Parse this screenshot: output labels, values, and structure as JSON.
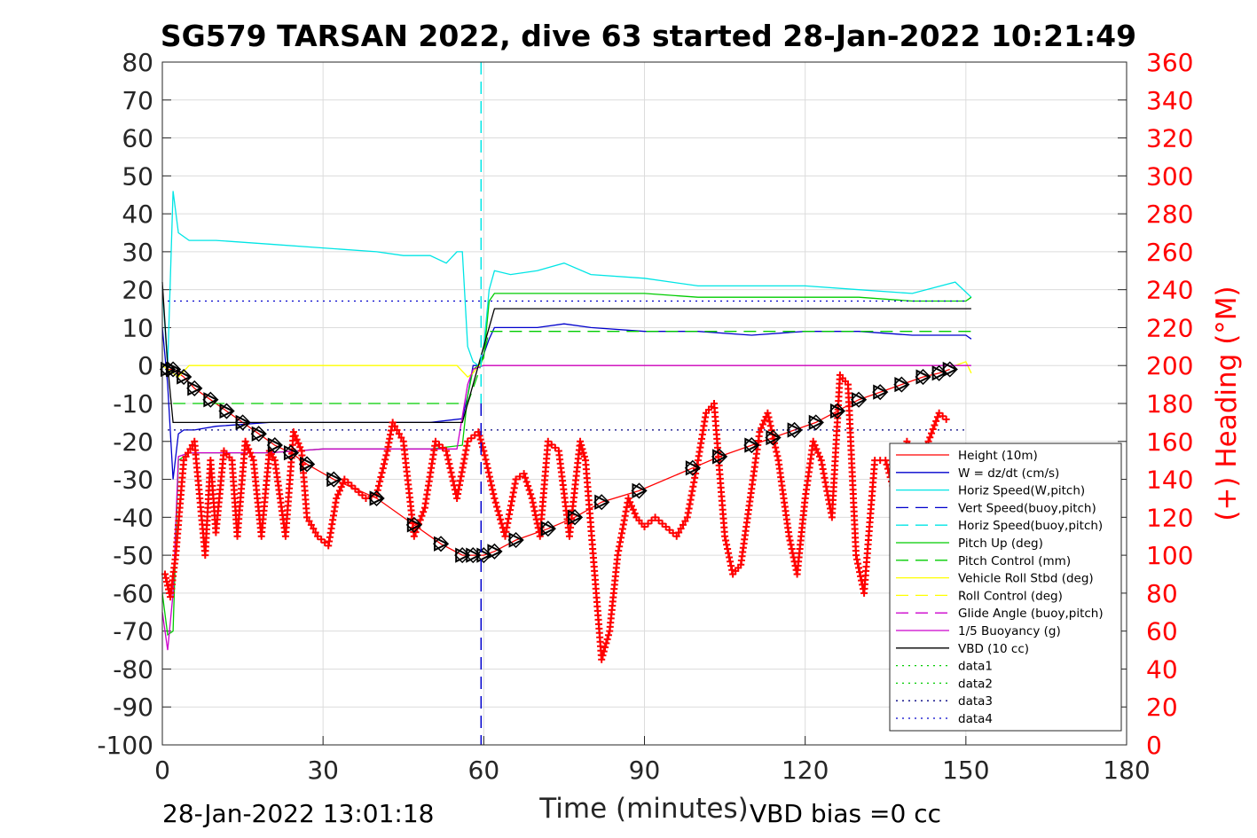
{
  "chart_data": {
    "type": "line",
    "title": "SG579 TARSAN 2022, dive 63 started 28-Jan-2022 10:21:49",
    "xlabel": "Time (minutes)",
    "ylabel_right": "(+) Heading (°M)",
    "timestamp": "28-Jan-2022 13:01:18",
    "vbd_note": "VBD bias =0 cc",
    "xlim": [
      0,
      180
    ],
    "ylim": [
      -100,
      80
    ],
    "ylim_right": [
      0,
      360
    ],
    "xticks": [
      0,
      30,
      60,
      90,
      120,
      150,
      180
    ],
    "yticks": [
      -100,
      -90,
      -80,
      -70,
      -60,
      -50,
      -40,
      -30,
      -20,
      -10,
      0,
      10,
      20,
      30,
      40,
      50,
      60,
      70,
      80
    ],
    "yticks_right": [
      0,
      20,
      40,
      60,
      80,
      100,
      120,
      140,
      160,
      180,
      200,
      220,
      240,
      260,
      280,
      300,
      320,
      340,
      360
    ],
    "grid": true,
    "legend_position": "bottom-right",
    "apogee_line_x": 59.5,
    "series": [
      {
        "name": "Height (10m)",
        "color": "#ff0000",
        "style": "solid",
        "x": [
          1,
          2,
          4,
          6,
          9,
          12,
          15,
          18,
          21,
          24,
          27,
          32,
          40,
          47,
          52,
          56,
          58,
          60,
          62,
          66,
          72,
          77,
          82,
          89,
          99,
          104,
          110,
          114,
          118,
          122,
          126,
          130,
          134,
          138,
          142,
          145,
          147
        ],
        "y": [
          -1,
          -1,
          -3,
          -6,
          -9,
          -12,
          -15,
          -18,
          -21,
          -23,
          -26,
          -30,
          -35,
          -42,
          -47,
          -50,
          -50,
          -50,
          -49,
          -46,
          -43,
          -40,
          -36,
          -33,
          -27,
          -24,
          -21,
          -19,
          -17,
          -15,
          -12,
          -9,
          -7,
          -5,
          -3,
          -2,
          -1
        ]
      },
      {
        "name": "W = dz/dt (cm/s)",
        "color": "#0000cc",
        "style": "solid",
        "x": [
          0,
          1,
          2,
          3,
          4,
          6,
          10,
          20,
          30,
          40,
          50,
          56,
          57,
          58,
          59,
          60,
          61,
          62,
          64,
          70,
          75,
          80,
          90,
          100,
          110,
          120,
          130,
          140,
          150,
          151
        ],
        "y": [
          10,
          -5,
          -30,
          -18,
          -17,
          -17,
          -16,
          -15,
          -15,
          -15,
          -15,
          -14,
          -8,
          0,
          0,
          3,
          7,
          10,
          10,
          10,
          11,
          10,
          9,
          9,
          8,
          9,
          9,
          8,
          8,
          7
        ]
      },
      {
        "name": "Horiz Speed(W,pitch)",
        "color": "#00e5e5",
        "style": "solid",
        "x": [
          0,
          1,
          2,
          3,
          5,
          10,
          20,
          30,
          40,
          45,
          50,
          53,
          55,
          56,
          57,
          58,
          59,
          60,
          61,
          62,
          65,
          70,
          75,
          80,
          90,
          100,
          110,
          120,
          130,
          140,
          148,
          151
        ],
        "y": [
          20,
          0,
          46,
          35,
          33,
          33,
          32,
          31,
          30,
          29,
          29,
          27,
          30,
          30,
          5,
          1,
          0,
          5,
          20,
          25,
          24,
          25,
          27,
          24,
          23,
          21,
          21,
          21,
          20,
          19,
          22,
          18
        ]
      },
      {
        "name": "Vert Speed(buoy,pitch)",
        "color": "#0000cc",
        "style": "dash",
        "x": [],
        "y": []
      },
      {
        "name": "Horiz Speed(buoy,pitch)",
        "color": "#00e5e5",
        "style": "dash",
        "x": [],
        "y": []
      },
      {
        "name": "Pitch Up (deg)",
        "color": "#00cc00",
        "style": "solid",
        "x": [
          0,
          1,
          2,
          3,
          5,
          10,
          20,
          30,
          40,
          50,
          56,
          57,
          58,
          59,
          60,
          61,
          62,
          70,
          80,
          90,
          100,
          110,
          120,
          130,
          140,
          150,
          151
        ],
        "y": [
          -60,
          -71,
          -70,
          -25,
          -23,
          -23,
          -23,
          -22,
          -22,
          -22,
          -21,
          -8,
          -1,
          0,
          2,
          17,
          19,
          19,
          19,
          19,
          18,
          18,
          18,
          18,
          17,
          17,
          18
        ]
      },
      {
        "name": "Pitch Control (mm)",
        "color": "#00cc00",
        "style": "dash",
        "x": [
          2,
          57,
          58,
          59,
          60,
          61,
          151
        ],
        "y": [
          -10,
          -10,
          -6,
          -2,
          3,
          9,
          9
        ]
      },
      {
        "name": "Vehicle Roll Stbd (deg)",
        "color": "#ffff00",
        "style": "solid",
        "x": [
          0,
          2,
          3,
          5,
          10,
          20,
          30,
          40,
          50,
          55,
          57,
          58,
          59,
          61,
          70,
          80,
          90,
          100,
          110,
          120,
          130,
          140,
          148,
          150,
          151
        ],
        "y": [
          0,
          -2,
          -3,
          0,
          0,
          0,
          0,
          0,
          0,
          0,
          -3,
          -2,
          0,
          0,
          0,
          0,
          0,
          0,
          0,
          0,
          0,
          0,
          0,
          1,
          -2
        ]
      },
      {
        "name": "Roll Control (deg)",
        "color": "#ffff00",
        "style": "dash",
        "x": [],
        "y": []
      },
      {
        "name": "Glide Angle (buoy,pitch)",
        "color": "#cc00cc",
        "style": "dash",
        "x": [],
        "y": []
      },
      {
        "name": "1/5 Buoyancy (g)",
        "color": "#cc00cc",
        "style": "solid",
        "x": [
          0,
          1,
          2,
          3,
          5,
          10,
          20,
          30,
          40,
          50,
          55,
          57,
          58,
          60,
          62,
          70,
          80,
          90,
          100,
          120,
          140,
          151
        ],
        "y": [
          -65,
          -75,
          -60,
          -24,
          -23,
          -23,
          -23,
          -22,
          -22,
          -22,
          -22,
          -5,
          -1,
          0,
          0,
          0,
          0,
          0,
          0,
          0,
          0,
          0
        ]
      },
      {
        "name": "VBD (10 cc)",
        "color": "#000000",
        "style": "solid",
        "x": [
          0,
          1,
          2,
          56,
          58,
          60,
          62,
          151
        ],
        "y": [
          22,
          0,
          -15,
          -15,
          -5,
          5,
          15,
          15
        ]
      },
      {
        "name": "data1",
        "color": "#00cc00",
        "style": "dot",
        "x": [],
        "y": []
      },
      {
        "name": "data2",
        "color": "#00cc00",
        "style": "dot",
        "x": [],
        "y": []
      },
      {
        "name": "data3",
        "color": "#000080",
        "style": "dot",
        "x": [
          1,
          150
        ],
        "y": [
          -17,
          -17
        ]
      },
      {
        "name": "data4",
        "color": "#0000cc",
        "style": "dot",
        "x": [
          1,
          150
        ],
        "y": [
          17,
          17
        ]
      },
      {
        "name": "(+) Heading (°M)",
        "color": "#ff0000",
        "style": "plus",
        "axis": "right",
        "x": [
          0.5,
          1.5,
          2.5,
          4,
          6,
          8,
          9,
          10,
          11.5,
          13,
          14,
          15.5,
          17,
          18.5,
          20,
          21,
          23,
          24.5,
          26,
          27,
          29,
          31,
          32.5,
          34,
          36,
          38,
          40,
          42,
          43,
          45,
          47,
          49,
          51,
          53,
          55,
          57,
          59,
          60,
          62,
          64,
          66,
          67.5,
          69,
          70.5,
          72,
          74,
          76,
          78,
          79,
          81,
          82,
          83.5,
          85,
          87,
          88.5,
          90,
          92,
          94,
          96,
          98,
          100,
          101.5,
          103,
          105,
          106.5,
          108,
          110,
          111.5,
          113,
          115,
          117,
          118.5,
          120,
          121.5,
          123,
          125,
          126.5,
          128,
          129.5,
          131,
          133,
          135,
          137,
          139,
          141,
          143,
          145,
          147
        ],
        "y": [
          90,
          78,
          100,
          150,
          160,
          100,
          150,
          112,
          155,
          150,
          110,
          160,
          150,
          110,
          155,
          150,
          110,
          165,
          155,
          120,
          110,
          105,
          130,
          140,
          135,
          130,
          132,
          155,
          170,
          160,
          110,
          125,
          160,
          155,
          130,
          160,
          165,
          155,
          130,
          110,
          140,
          143,
          130,
          110,
          160,
          155,
          110,
          160,
          150,
          80,
          45,
          60,
          100,
          130,
          120,
          115,
          120,
          115,
          110,
          120,
          150,
          175,
          180,
          110,
          90,
          95,
          135,
          165,
          175,
          150,
          110,
          90,
          130,
          160,
          150,
          120,
          195,
          190,
          100,
          80,
          150,
          150,
          130,
          160,
          150,
          160,
          175,
          170
        ]
      }
    ]
  }
}
